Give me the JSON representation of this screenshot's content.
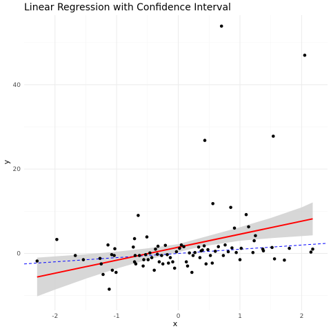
{
  "chart_data": {
    "type": "scatter",
    "title": "Linear Regression with Confidence Interval",
    "xlabel": "x",
    "ylabel": "y",
    "xlim": [
      -2.5,
      2.42
    ],
    "ylim": [
      -13.5,
      56.5
    ],
    "x_ticks": [
      -2,
      -1,
      0,
      1,
      2
    ],
    "x_tick_labels": [
      "-2",
      "-1",
      "0",
      "1",
      "2"
    ],
    "y_ticks": [
      0,
      20,
      40
    ],
    "y_tick_labels": [
      "0",
      "20",
      "40"
    ],
    "grid": true,
    "legend": "none",
    "colors": {
      "points": "#000000",
      "fit_line": "#ff0000",
      "ci_band": "#d3d3d3",
      "reference_line": "#0000ff",
      "grid_major": "#ebebeb",
      "grid_minor": "#f5f5f5"
    },
    "points": [
      [
        -2.29,
        -1.8
      ],
      [
        -1.97,
        3.3
      ],
      [
        -1.67,
        -0.5
      ],
      [
        -1.54,
        -1.5
      ],
      [
        -1.27,
        -1.2
      ],
      [
        -1.25,
        -2.5
      ],
      [
        -1.22,
        -5.0
      ],
      [
        -1.14,
        2.0
      ],
      [
        -1.12,
        -8.5
      ],
      [
        -1.08,
        -0.3
      ],
      [
        -1.07,
        -4.0
      ],
      [
        -1.04,
        -0.5
      ],
      [
        -1.03,
        1.1
      ],
      [
        -1.01,
        -4.5
      ],
      [
        -0.73,
        1.5
      ],
      [
        -0.71,
        -2.0
      ],
      [
        -0.71,
        3.5
      ],
      [
        -0.7,
        -0.5
      ],
      [
        -0.69,
        -2.5
      ],
      [
        -0.65,
        9.0
      ],
      [
        -0.63,
        -0.5
      ],
      [
        -0.57,
        -3.0
      ],
      [
        -0.56,
        -1.5
      ],
      [
        -0.53,
        -0.3
      ],
      [
        -0.51,
        3.9
      ],
      [
        -0.49,
        -1.5
      ],
      [
        -0.46,
        0.1
      ],
      [
        -0.43,
        -1.0
      ],
      [
        -0.39,
        -4.0
      ],
      [
        -0.37,
        1.0
      ],
      [
        -0.34,
        -0.2
      ],
      [
        -0.33,
        1.7
      ],
      [
        -0.31,
        -2.0
      ],
      [
        -0.27,
        -0.5
      ],
      [
        -0.25,
        -2.5
      ],
      [
        -0.21,
        1.9
      ],
      [
        -0.18,
        -0.3
      ],
      [
        -0.16,
        -2.3
      ],
      [
        -0.13,
        -1.0
      ],
      [
        -0.09,
        -2.0
      ],
      [
        -0.06,
        -3.5
      ],
      [
        -0.03,
        0.4
      ],
      [
        0.02,
        1.2
      ],
      [
        0.05,
        2.0
      ],
      [
        0.09,
        1.6
      ],
      [
        0.13,
        -2.0
      ],
      [
        0.15,
        -3.0
      ],
      [
        0.18,
        0.1
      ],
      [
        0.22,
        -4.5
      ],
      [
        0.24,
        -0.5
      ],
      [
        0.27,
        0.2
      ],
      [
        0.33,
        1.5
      ],
      [
        0.35,
        -1.0
      ],
      [
        0.37,
        0.6
      ],
      [
        0.39,
        0.8
      ],
      [
        0.42,
        1.8
      ],
      [
        0.43,
        26.8
      ],
      [
        0.45,
        -2.5
      ],
      [
        0.48,
        0.9
      ],
      [
        0.52,
        -0.5
      ],
      [
        0.55,
        -2.3
      ],
      [
        0.56,
        11.8
      ],
      [
        0.6,
        0.5
      ],
      [
        0.65,
        1.6
      ],
      [
        0.7,
        53.9
      ],
      [
        0.73,
        -0.5
      ],
      [
        0.76,
        2.0
      ],
      [
        0.81,
        0.4
      ],
      [
        0.85,
        10.9
      ],
      [
        0.87,
        1.3
      ],
      [
        0.91,
        6.0
      ],
      [
        0.94,
        0.2
      ],
      [
        1.0,
        -1.5
      ],
      [
        1.02,
        1.2
      ],
      [
        1.1,
        9.2
      ],
      [
        1.14,
        6.3
      ],
      [
        1.21,
        0.2
      ],
      [
        1.23,
        3.0
      ],
      [
        1.25,
        4.2
      ],
      [
        1.37,
        1.0
      ],
      [
        1.38,
        0.6
      ],
      [
        1.52,
        1.4
      ],
      [
        1.54,
        27.8
      ],
      [
        1.56,
        -1.3
      ],
      [
        1.72,
        -1.6
      ],
      [
        1.8,
        1.2
      ],
      [
        2.05,
        47.0
      ],
      [
        2.15,
        0.3
      ],
      [
        2.18,
        1.0
      ]
    ],
    "fit_line": {
      "x": [
        -2.29,
        2.18
      ],
      "y": [
        -5.6,
        8.2
      ]
    },
    "confidence_band": {
      "x": [
        -2.29,
        -2.0,
        -1.5,
        -1.0,
        -0.5,
        0.0,
        0.25,
        0.5,
        1.0,
        1.5,
        2.0,
        2.18
      ],
      "lower": [
        -10.2,
        -8.6,
        -6.0,
        -3.6,
        -1.5,
        0.3,
        1.2,
        1.9,
        3.0,
        3.6,
        4.1,
        4.3
      ],
      "upper": [
        -1.0,
        -0.7,
        -0.2,
        0.4,
        1.2,
        2.2,
        3.2,
        4.2,
        6.2,
        8.4,
        10.9,
        12.1
      ]
    },
    "reference_line": {
      "style": "dashed",
      "x": [
        -2.5,
        2.42
      ],
      "y": [
        -2.5,
        2.4
      ]
    }
  }
}
